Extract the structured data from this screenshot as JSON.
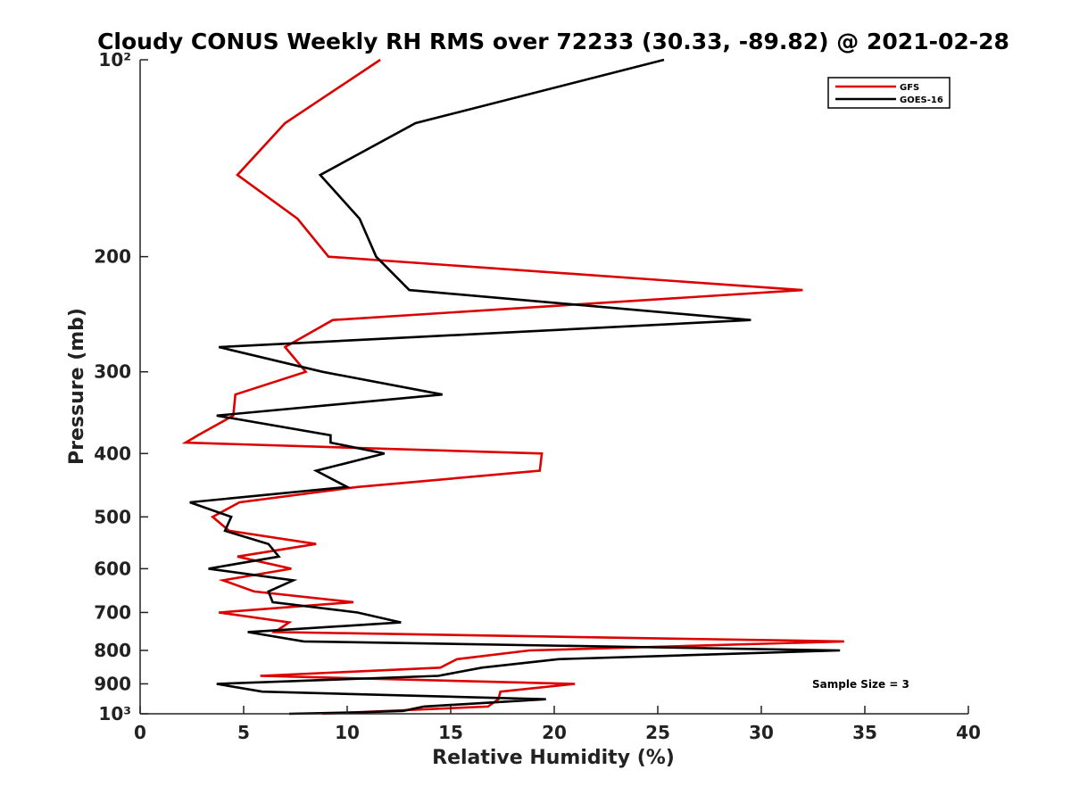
{
  "chart_data": {
    "type": "line",
    "title": "Cloudy CONUS Weekly RH RMS over 72233 (30.33, -89.82) @ 2021-02-28",
    "xlabel": "Relative Humidity (%)",
    "ylabel": "Pressure (mb)",
    "xlim": [
      0,
      40
    ],
    "ylim": [
      100,
      1000
    ],
    "yscale": "log",
    "yreversed": true,
    "grid": false,
    "x_ticks": [
      0,
      5,
      10,
      15,
      20,
      25,
      30,
      35,
      40
    ],
    "x_tick_labels": [
      "0",
      "5",
      "10",
      "15",
      "20",
      "25",
      "30",
      "35",
      "40"
    ],
    "y_ticks": [
      100,
      200,
      300,
      400,
      500,
      600,
      700,
      800,
      900,
      1000
    ],
    "y_tick_labels": [
      "10²",
      "200",
      "300",
      "400",
      "500",
      "600",
      "700",
      "800",
      "900",
      "10³"
    ],
    "legend": {
      "location": "top-right",
      "entries": [
        {
          "name": "GFS",
          "color": "#dd0000"
        },
        {
          "name": "GOES-16",
          "color": "#000000"
        }
      ]
    },
    "annotation": "Sample Size = 3",
    "series": [
      {
        "name": "GFS",
        "color": "#dd0000",
        "points": [
          [
            11.6,
            100
          ],
          [
            7.0,
            125
          ],
          [
            4.7,
            150
          ],
          [
            7.6,
            175
          ],
          [
            9.1,
            200
          ],
          [
            32.0,
            225
          ],
          [
            9.3,
            250
          ],
          [
            7.0,
            275
          ],
          [
            8.0,
            300
          ],
          [
            4.6,
            325
          ],
          [
            4.5,
            350
          ],
          [
            2.8,
            375
          ],
          [
            2.2,
            385
          ],
          [
            19.4,
            400
          ],
          [
            19.3,
            425
          ],
          [
            10.5,
            450
          ],
          [
            4.8,
            475
          ],
          [
            3.5,
            500
          ],
          [
            4.3,
            525
          ],
          [
            8.5,
            550
          ],
          [
            4.7,
            575
          ],
          [
            7.3,
            600
          ],
          [
            4.0,
            625
          ],
          [
            5.5,
            650
          ],
          [
            10.3,
            675
          ],
          [
            3.8,
            700
          ],
          [
            7.2,
            725
          ],
          [
            6.5,
            750
          ],
          [
            34.0,
            775
          ],
          [
            18.8,
            800
          ],
          [
            15.3,
            825
          ],
          [
            14.5,
            850
          ],
          [
            5.8,
            875
          ],
          [
            21.0,
            900
          ],
          [
            17.4,
            925
          ],
          [
            17.3,
            950
          ],
          [
            16.8,
            975
          ],
          [
            8.8,
            1000
          ]
        ]
      },
      {
        "name": "GOES-16",
        "color": "#000000",
        "points": [
          [
            25.3,
            100
          ],
          [
            13.3,
            125
          ],
          [
            8.7,
            150
          ],
          [
            10.6,
            175
          ],
          [
            11.4,
            200
          ],
          [
            13.0,
            225
          ],
          [
            29.5,
            250
          ],
          [
            3.8,
            275
          ],
          [
            8.8,
            300
          ],
          [
            14.6,
            325
          ],
          [
            3.7,
            350
          ],
          [
            9.2,
            375
          ],
          [
            9.2,
            385
          ],
          [
            11.8,
            400
          ],
          [
            8.5,
            425
          ],
          [
            10.0,
            450
          ],
          [
            2.4,
            475
          ],
          [
            4.4,
            500
          ],
          [
            4.1,
            525
          ],
          [
            6.2,
            550
          ],
          [
            6.7,
            575
          ],
          [
            3.3,
            600
          ],
          [
            7.4,
            625
          ],
          [
            6.2,
            650
          ],
          [
            6.4,
            675
          ],
          [
            10.5,
            700
          ],
          [
            12.6,
            725
          ],
          [
            5.2,
            750
          ],
          [
            7.9,
            775
          ],
          [
            33.8,
            800
          ],
          [
            20.2,
            825
          ],
          [
            16.5,
            850
          ],
          [
            14.4,
            875
          ],
          [
            3.7,
            900
          ],
          [
            5.9,
            925
          ],
          [
            19.6,
            950
          ],
          [
            13.7,
            975
          ],
          [
            12.7,
            990
          ],
          [
            10.5,
            995
          ],
          [
            7.2,
            1000
          ]
        ]
      }
    ]
  }
}
